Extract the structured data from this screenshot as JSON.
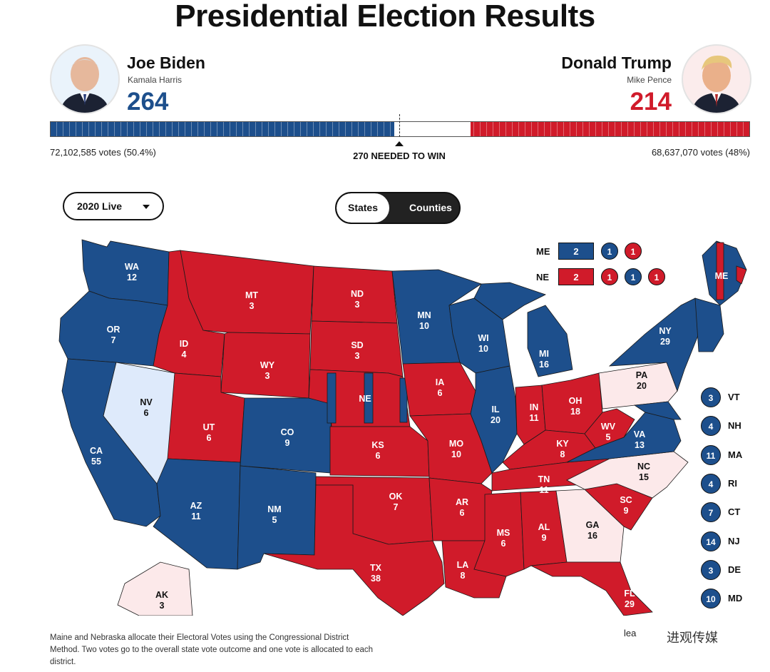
{
  "title": "Presidential Election Results",
  "biden": {
    "name": "Joe Biden",
    "running_mate": "Kamala Harris",
    "electoral_votes": "264",
    "votes": "72,102,585 votes (50.4%)"
  },
  "trump": {
    "name": "Donald Trump",
    "running_mate": "Mike Pence",
    "electoral_votes": "214",
    "votes": "68,637,070 votes (48%)"
  },
  "needed": "270 NEEDED TO WIN",
  "progress": {
    "total": 538,
    "blue": 264,
    "red": 214
  },
  "dropdown": {
    "selected": "2020 Live"
  },
  "toggle": {
    "states": "States",
    "counties": "Counties",
    "active": "States"
  },
  "colors": {
    "blue": "#1d4f8c",
    "red": "#d01b2a",
    "lean_blue": "#deeafb",
    "lean_red": "#fce9ea"
  },
  "split_states": {
    "me": {
      "abbr": "ME",
      "statewide": "2",
      "districts": [
        "1",
        "1"
      ]
    },
    "ne": {
      "abbr": "NE",
      "statewide": "2",
      "districts": [
        "1",
        "1",
        "1"
      ]
    }
  },
  "northeast": [
    {
      "abbr": "VT",
      "ev": "3"
    },
    {
      "abbr": "NH",
      "ev": "4"
    },
    {
      "abbr": "MA",
      "ev": "11"
    },
    {
      "abbr": "RI",
      "ev": "4"
    },
    {
      "abbr": "CT",
      "ev": "7"
    },
    {
      "abbr": "NJ",
      "ev": "14"
    },
    {
      "abbr": "DE",
      "ev": "3"
    },
    {
      "abbr": "MD",
      "ev": "10"
    }
  ],
  "states": {
    "WA": {
      "abbr": "WA",
      "ev": "12"
    },
    "OR": {
      "abbr": "OR",
      "ev": "7"
    },
    "CA": {
      "abbr": "CA",
      "ev": "55"
    },
    "NV": {
      "abbr": "NV",
      "ev": "6"
    },
    "ID": {
      "abbr": "ID",
      "ev": "4"
    },
    "MT": {
      "abbr": "MT",
      "ev": "3"
    },
    "WY": {
      "abbr": "WY",
      "ev": "3"
    },
    "UT": {
      "abbr": "UT",
      "ev": "6"
    },
    "CO": {
      "abbr": "CO",
      "ev": "9"
    },
    "AZ": {
      "abbr": "AZ",
      "ev": "11"
    },
    "NM": {
      "abbr": "NM",
      "ev": "5"
    },
    "ND": {
      "abbr": "ND",
      "ev": "3"
    },
    "SD": {
      "abbr": "SD",
      "ev": "3"
    },
    "NE": {
      "abbr": "NE"
    },
    "KS": {
      "abbr": "KS",
      "ev": "6"
    },
    "OK": {
      "abbr": "OK",
      "ev": "7"
    },
    "TX": {
      "abbr": "TX",
      "ev": "38"
    },
    "MN": {
      "abbr": "MN",
      "ev": "10"
    },
    "IA": {
      "abbr": "IA",
      "ev": "6"
    },
    "MO": {
      "abbr": "MO",
      "ev": "10"
    },
    "AR": {
      "abbr": "AR",
      "ev": "6"
    },
    "LA": {
      "abbr": "LA",
      "ev": "8"
    },
    "WI": {
      "abbr": "WI",
      "ev": "10"
    },
    "IL": {
      "abbr": "IL",
      "ev": "20"
    },
    "MI": {
      "abbr": "MI",
      "ev": "16"
    },
    "IN": {
      "abbr": "IN",
      "ev": "11"
    },
    "OH": {
      "abbr": "OH",
      "ev": "18"
    },
    "KY": {
      "abbr": "KY",
      "ev": "8"
    },
    "TN": {
      "abbr": "TN",
      "ev": "11"
    },
    "MS": {
      "abbr": "MS",
      "ev": "6"
    },
    "AL": {
      "abbr": "AL",
      "ev": "9"
    },
    "GA": {
      "abbr": "GA",
      "ev": "16"
    },
    "FL": {
      "abbr": "FL",
      "ev": "29"
    },
    "SC": {
      "abbr": "SC",
      "ev": "9"
    },
    "NC": {
      "abbr": "NC",
      "ev": "15"
    },
    "VA": {
      "abbr": "VA",
      "ev": "13"
    },
    "WV": {
      "abbr": "WV",
      "ev": "5"
    },
    "PA": {
      "abbr": "PA",
      "ev": "20"
    },
    "NY": {
      "abbr": "NY",
      "ev": "29"
    },
    "ME": {
      "abbr": "ME"
    },
    "AK": {
      "abbr": "AK",
      "ev": "3"
    }
  },
  "note": "Maine and Nebraska allocate their Electoral Votes using the Congressional District Method. Two votes go to the overall state vote outcome and one vote is allocated to each district.",
  "watermark": {
    "partial": "lea",
    "brand": "进观传媒"
  }
}
